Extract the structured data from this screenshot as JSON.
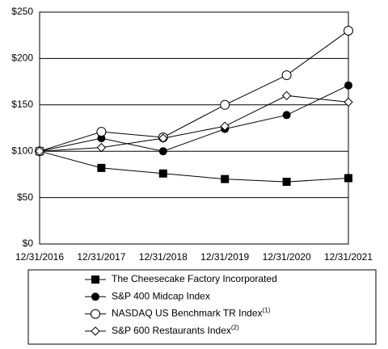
{
  "chart_data": {
    "type": "line",
    "categories": [
      "12/31/2016",
      "12/31/2017",
      "12/31/2018",
      "12/31/2019",
      "12/31/2020",
      "12/31/2021"
    ],
    "series": [
      {
        "name": "The Cheesecake Factory Incorporated",
        "color": "#000000",
        "marker": "square",
        "values": [
          100,
          82,
          76,
          70,
          67,
          71
        ]
      },
      {
        "name": "S&P 400 Midcap Index",
        "color": "#000000",
        "marker": "circle",
        "values": [
          100,
          114,
          100,
          124,
          139,
          171
        ]
      },
      {
        "name": "NASDAQ US Benchmark TR Index",
        "footnote": "(1)",
        "color": "#000000",
        "marker": "circle-open",
        "values": [
          100,
          121,
          115,
          150,
          182,
          230
        ]
      },
      {
        "name": "S&P 600 Restaurants Index",
        "footnote": "(2)",
        "color": "#000000",
        "marker": "diamond-open",
        "values": [
          100,
          104,
          114,
          127,
          160,
          153
        ]
      }
    ],
    "ylim": [
      0,
      250
    ],
    "yticks": [
      {
        "value": 0,
        "label": "$0"
      },
      {
        "value": 50,
        "label": "$50"
      },
      {
        "value": 100,
        "label": "$100"
      },
      {
        "value": 150,
        "label": "$150"
      },
      {
        "value": 200,
        "label": "$200"
      },
      {
        "value": 250,
        "label": "$250"
      }
    ],
    "grid": true,
    "legend": "bottom"
  }
}
